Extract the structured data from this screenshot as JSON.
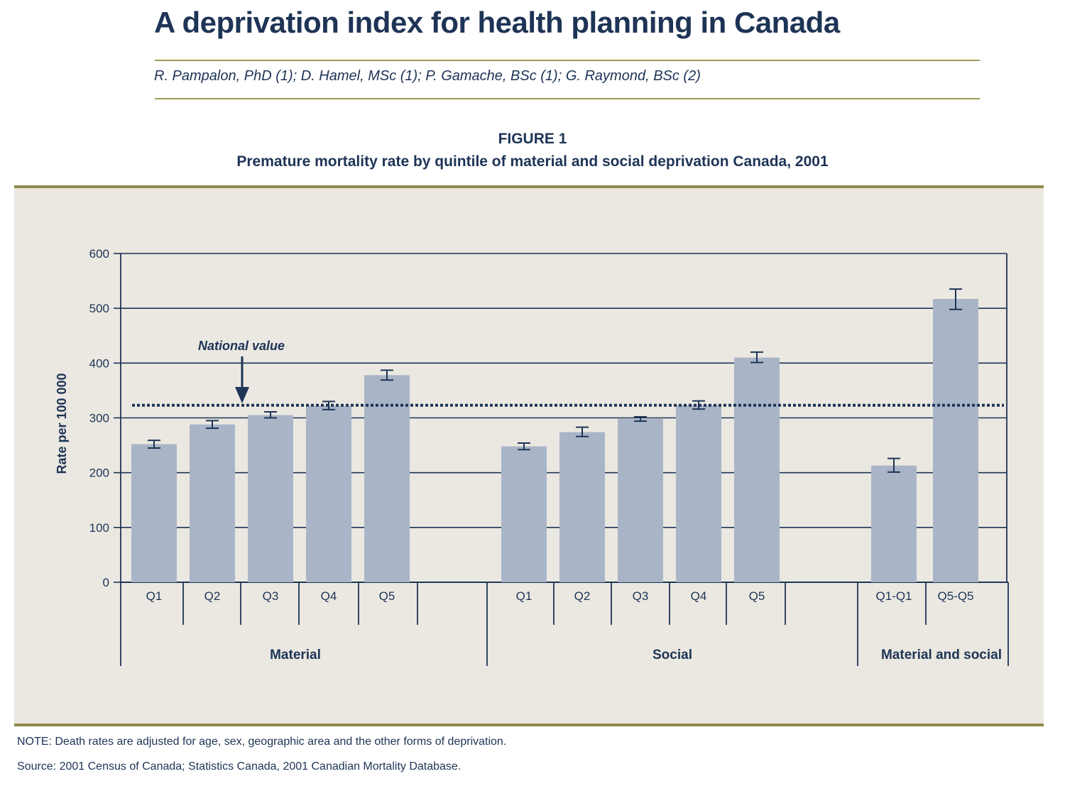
{
  "document": {
    "title": "A deprivation index for health planning in Canada",
    "authors": "R. Pampalon, PhD (1); D. Hamel, MSc (1); P. Gamache, BSc (1); G. Raymond, BSc (2)"
  },
  "figure": {
    "label": "FIGURE 1",
    "caption": "Premature mortality rate by quintile of material and social deprivation Canada, 2001",
    "note": "NOTE: Death rates are adjusted for age, sex, geographic area and the other forms of deprivation.",
    "source": "Source: 2001 Census of Canada; Statistics Canada, 2001 Canadian Mortality Database."
  },
  "colors": {
    "bar": "#a9b5c7",
    "axis": "#1e3456",
    "panel": "#eae8e1",
    "rule": "#8f8a4a"
  },
  "chart_data": {
    "type": "bar",
    "ylabel": "Rate per 100 000",
    "ylim": [
      0,
      600
    ],
    "yticks": [
      0,
      100,
      200,
      300,
      400,
      500,
      600
    ],
    "grid": true,
    "reference_line": {
      "label": "National value",
      "value": 323
    },
    "groups": [
      {
        "name": "Material",
        "categories": [
          "Q1",
          "Q2",
          "Q3",
          "Q4",
          "Q5"
        ],
        "values": [
          252,
          288,
          305,
          322,
          378
        ],
        "error_low": [
          245,
          281,
          300,
          315,
          369
        ],
        "error_high": [
          259,
          295,
          311,
          330,
          387
        ]
      },
      {
        "name": "Social",
        "categories": [
          "Q1",
          "Q2",
          "Q3",
          "Q4",
          "Q5"
        ],
        "values": [
          248,
          274,
          298,
          323,
          410
        ],
        "error_low": [
          242,
          266,
          294,
          316,
          401
        ],
        "error_high": [
          254,
          283,
          302,
          331,
          420
        ]
      },
      {
        "name": "Material and social",
        "categories": [
          "Q1-Q1",
          "Q5-Q5"
        ],
        "values": [
          213,
          517
        ],
        "error_low": [
          201,
          498
        ],
        "error_high": [
          226,
          535
        ]
      }
    ]
  }
}
